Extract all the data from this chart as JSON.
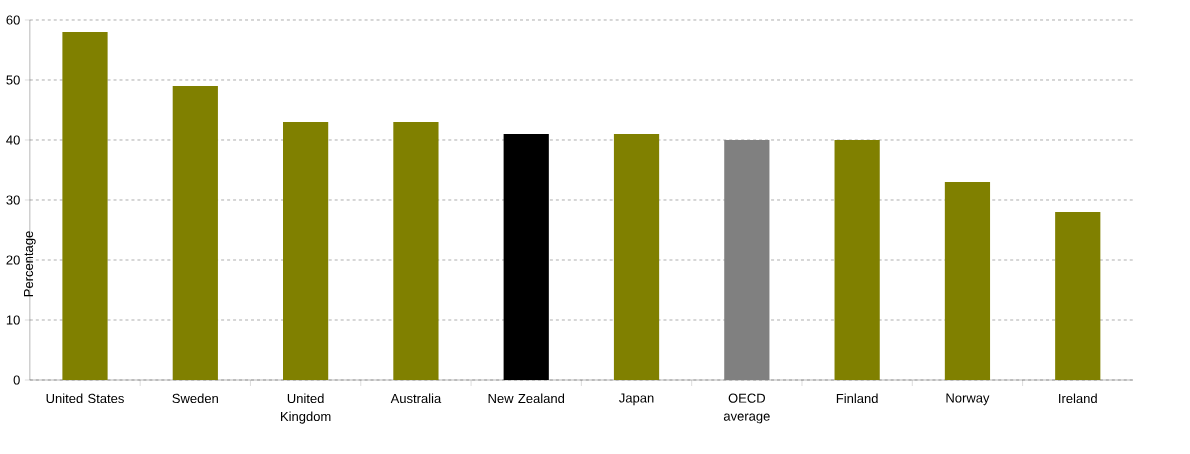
{
  "chart_data": {
    "type": "bar",
    "ylabel": "Percentage",
    "categories": [
      "United States",
      "Sweden",
      "United Kingdom",
      "Australia",
      "New Zealand",
      "Japan",
      "OECD average",
      "Finland",
      "Norway",
      "Ireland"
    ],
    "values": [
      58,
      49,
      43,
      43,
      41,
      41,
      40,
      40,
      33,
      28
    ],
    "colors": [
      "#808000",
      "#808000",
      "#808000",
      "#808000",
      "#000000",
      "#808000",
      "#808080",
      "#808000",
      "#808000",
      "#808000"
    ],
    "ylim": [
      0,
      60
    ],
    "yticks": [
      0,
      10,
      20,
      30,
      40,
      50,
      60
    ],
    "grid": "y"
  }
}
